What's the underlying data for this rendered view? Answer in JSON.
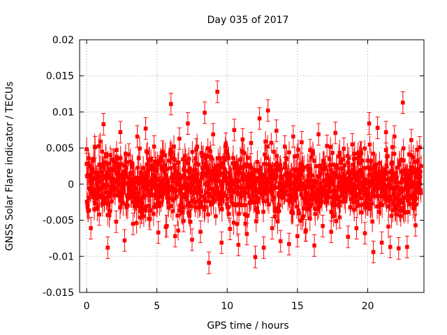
{
  "chart_data": {
    "type": "scatter",
    "title": "Day 035 of 2017",
    "xlabel": "GPS time / hours",
    "ylabel": "GNSS Solar Flare indicator / TECUs",
    "xlim": [
      -0.5,
      24.0
    ],
    "ylim": [
      -0.015,
      0.02
    ],
    "xticks": [
      0,
      5,
      10,
      15,
      20
    ],
    "xtick_labels": [
      "0",
      "5",
      "10",
      "15",
      "20"
    ],
    "yticks": [
      -0.015,
      -0.01,
      -0.005,
      0,
      0.005,
      0.01,
      0.015,
      0.02
    ],
    "ytick_labels": [
      "-0.015",
      "-0.01",
      "-0.005",
      "0",
      "0.005",
      "0.01",
      "0.015",
      "0.02"
    ],
    "grid": true,
    "legend": "none",
    "marker": "filled-square",
    "error_bars": true,
    "color": "#ff0000",
    "series": [
      {
        "x": [
          0.0,
          0.3,
          0.6,
          0.9,
          1.2,
          1.5,
          1.8,
          2.1,
          2.4,
          2.7,
          3.0,
          3.3,
          3.6,
          3.9,
          4.2,
          4.5,
          4.8,
          5.1,
          5.4,
          5.7,
          6.0,
          6.3,
          6.6,
          6.9,
          7.2,
          7.5,
          7.8,
          8.1,
          8.4,
          8.7,
          9.0,
          9.3,
          9.6,
          9.9,
          10.2,
          10.5,
          10.8,
          11.1,
          11.4,
          11.7,
          12.0,
          12.3,
          12.6,
          12.9,
          13.2,
          13.5,
          13.8,
          14.1,
          14.4,
          14.7,
          15.0,
          15.3,
          15.6,
          15.9,
          16.2,
          16.5,
          16.8,
          17.1,
          17.4,
          17.7,
          18.0,
          18.3,
          18.6,
          18.9,
          19.2,
          19.5,
          19.8,
          20.1,
          20.4,
          20.7,
          21.0,
          21.3,
          21.6,
          21.9,
          22.2,
          22.5,
          22.8,
          23.1,
          23.4,
          23.7
        ],
        "y": [
          0.0028,
          -0.0061,
          0.0051,
          -0.0042,
          0.0083,
          -0.0088,
          0.0034,
          -0.0052,
          0.0072,
          -0.0078,
          0.0041,
          -0.0055,
          0.0066,
          -0.0039,
          0.0077,
          -0.0048,
          0.0052,
          -0.0067,
          0.0045,
          -0.0058,
          0.0111,
          -0.0072,
          0.0063,
          -0.0051,
          0.0084,
          -0.0077,
          0.0048,
          -0.0066,
          0.0099,
          -0.0109,
          0.0069,
          0.0128,
          -0.0081,
          0.0056,
          -0.0062,
          0.0075,
          -0.0084,
          0.0062,
          -0.0069,
          0.0057,
          -0.0101,
          0.0091,
          -0.0088,
          0.0102,
          -0.0061,
          0.0074,
          -0.0079,
          0.0052,
          -0.0083,
          0.0066,
          -0.0072,
          0.0058,
          -0.0064,
          0.0047,
          -0.0085,
          0.0069,
          -0.0058,
          0.0053,
          -0.0066,
          0.0071,
          -0.0046,
          0.0049,
          -0.0073,
          0.0055,
          -0.0061,
          0.0044,
          -0.0068,
          0.0084,
          -0.0094,
          0.0078,
          -0.0081,
          0.0072,
          -0.0087,
          0.0066,
          -0.0089,
          0.0113,
          -0.0087,
          0.0061,
          -0.0057,
          0.0051
        ]
      }
    ]
  }
}
